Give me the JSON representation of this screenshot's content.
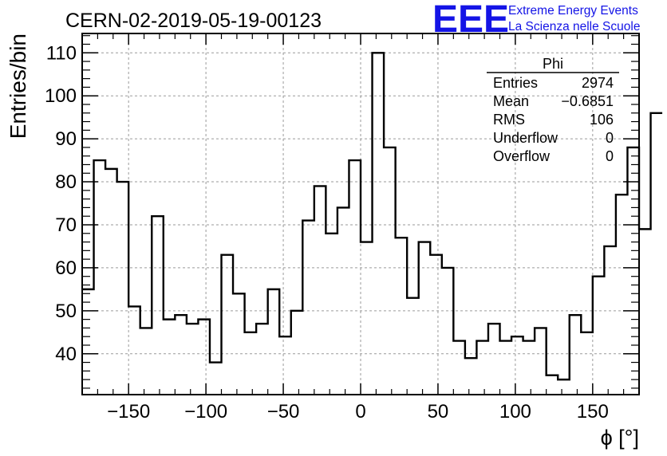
{
  "title": "CERN-02-2019-05-19-00123",
  "logo": {
    "mark": "EEE",
    "line1": "Extreme Energy Events",
    "line2": "La Scienza nelle Scuole",
    "color": "#1414e6"
  },
  "stats": {
    "name": "Phi",
    "rows": [
      {
        "label": "Entries",
        "value": "2974"
      },
      {
        "label": "Mean",
        "value": "−0.6851"
      },
      {
        "label": "RMS",
        "value": "106"
      },
      {
        "label": "Underflow",
        "value": "0"
      },
      {
        "label": "Overflow",
        "value": "0"
      }
    ]
  },
  "chart_data": {
    "type": "bar",
    "style": "step-histogram",
    "title": "CERN-02-2019-05-19-00123",
    "xlabel": "ϕ [°]",
    "ylabel": "Entries/bin",
    "xlim": [
      -180,
      180
    ],
    "ylim": [
      30.5,
      114.5
    ],
    "bin_width": 7.5,
    "grid": true,
    "x_ticks": [
      -150,
      -100,
      -50,
      0,
      50,
      100,
      150
    ],
    "x_tick_labels": [
      "−150",
      "−100",
      "−50",
      "0",
      "50",
      "100",
      "150"
    ],
    "y_ticks": [
      40,
      50,
      60,
      70,
      80,
      90,
      100,
      110
    ],
    "y_tick_labels": [
      "40",
      "50",
      "60",
      "70",
      "80",
      "90",
      "100",
      "110"
    ],
    "values": [
      55,
      85,
      83,
      80,
      51,
      46,
      72,
      48,
      49,
      47,
      48,
      38,
      63,
      54,
      45,
      47,
      55,
      44,
      50,
      71,
      79,
      68,
      74,
      85,
      66,
      110,
      88,
      67,
      53,
      66,
      63,
      60,
      43,
      39,
      43,
      47,
      43,
      44,
      43,
      46,
      35,
      34,
      49,
      45,
      58,
      65,
      77,
      88,
      69,
      96
    ],
    "line_color": "#000000"
  }
}
